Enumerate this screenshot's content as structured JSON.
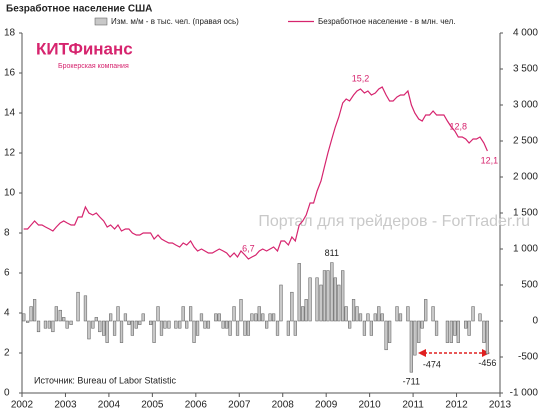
{
  "chart_data": {
    "type": "bar-line",
    "title": "Безработное население США",
    "source": "Источник: Bureau of Labor Statistic",
    "watermark": "Портал для трейдеров - ForTrader.ru",
    "logo": {
      "name": "КИТФинанс",
      "tagline": "Брокерская компания"
    },
    "x": [
      2002.04,
      2002.13,
      2002.21,
      2002.29,
      2002.38,
      2002.46,
      2002.54,
      2002.63,
      2002.71,
      2002.79,
      2002.88,
      2002.96,
      2003.04,
      2003.13,
      2003.21,
      2003.29,
      2003.38,
      2003.46,
      2003.54,
      2003.63,
      2003.71,
      2003.79,
      2003.88,
      2003.96,
      2004.04,
      2004.13,
      2004.21,
      2004.29,
      2004.38,
      2004.46,
      2004.54,
      2004.63,
      2004.71,
      2004.79,
      2004.88,
      2004.96,
      2005.04,
      2005.13,
      2005.21,
      2005.29,
      2005.38,
      2005.46,
      2005.54,
      2005.63,
      2005.71,
      2005.79,
      2005.88,
      2005.96,
      2006.04,
      2006.13,
      2006.21,
      2006.29,
      2006.38,
      2006.46,
      2006.54,
      2006.63,
      2006.71,
      2006.79,
      2006.88,
      2006.96,
      2007.04,
      2007.13,
      2007.21,
      2007.29,
      2007.38,
      2007.46,
      2007.54,
      2007.63,
      2007.71,
      2007.79,
      2007.88,
      2007.96,
      2008.04,
      2008.13,
      2008.21,
      2008.29,
      2008.38,
      2008.46,
      2008.54,
      2008.63,
      2008.71,
      2008.79,
      2008.88,
      2008.96,
      2009.04,
      2009.13,
      2009.21,
      2009.29,
      2009.38,
      2009.46,
      2009.54,
      2009.63,
      2009.71,
      2009.79,
      2009.88,
      2009.96,
      2010.04,
      2010.13,
      2010.21,
      2010.29,
      2010.38,
      2010.46,
      2010.54,
      2010.63,
      2010.71,
      2010.79,
      2010.88,
      2010.96,
      2011.04,
      2011.13,
      2011.21,
      2011.29,
      2011.38,
      2011.46,
      2011.54,
      2011.63,
      2011.71,
      2011.79,
      2011.88,
      2011.96,
      2012.04,
      2012.13,
      2012.21,
      2012.29,
      2012.38,
      2012.46,
      2012.54,
      2012.63,
      2012.71
    ],
    "series": [
      {
        "name": "Изм. м/м - в тыс. чел. (правая ось)",
        "type": "bar",
        "axis": "y2",
        "color": "#c8c8c8",
        "values": [
          100,
          -20,
          200,
          300,
          -150,
          0,
          -100,
          -100,
          -150,
          200,
          150,
          50,
          -100,
          -50,
          0,
          400,
          0,
          350,
          -250,
          -100,
          50,
          -150,
          -200,
          -300,
          100,
          -200,
          200,
          -300,
          100,
          -50,
          -200,
          -100,
          -50,
          100,
          0,
          -50,
          -300,
          200,
          -200,
          -100,
          -100,
          0,
          -100,
          -100,
          200,
          -100,
          200,
          -300,
          -200,
          100,
          -100,
          -100,
          0,
          100,
          100,
          -100,
          -100,
          -200,
          200,
          -200,
          300,
          -200,
          -200,
          100,
          100,
          200,
          100,
          -100,
          100,
          100,
          -200,
          500,
          0,
          -200,
          400,
          -200,
          800,
          200,
          300,
          600,
          0,
          600,
          500,
          700,
          700,
          811,
          600,
          500,
          700,
          200,
          -100,
          300,
          200,
          100,
          -200,
          100,
          -200,
          100,
          200,
          100,
          -400,
          -300,
          0,
          200,
          100,
          0,
          200,
          -711,
          -474,
          -300,
          -100,
          300,
          0,
          200,
          -200,
          0,
          0,
          -300,
          -300,
          -200,
          -300,
          0,
          -100,
          -200,
          200,
          0,
          100,
          -300,
          -456
        ]
      },
      {
        "name": "Безработное население - в млн. чел.",
        "type": "line",
        "axis": "y",
        "color": "#d6246e",
        "values": [
          8.2,
          8.2,
          8.4,
          8.6,
          8.4,
          8.4,
          8.3,
          8.2,
          8.1,
          8.3,
          8.5,
          8.6,
          8.5,
          8.4,
          8.4,
          8.8,
          8.8,
          9.3,
          9.0,
          8.9,
          9.0,
          8.8,
          8.6,
          8.3,
          8.4,
          8.2,
          8.4,
          8.1,
          8.2,
          8.2,
          8.0,
          7.9,
          7.9,
          8.0,
          8.0,
          8.0,
          7.7,
          7.9,
          7.7,
          7.6,
          7.5,
          7.5,
          7.4,
          7.3,
          7.5,
          7.4,
          7.6,
          7.3,
          7.1,
          7.2,
          7.1,
          7.0,
          7.0,
          7.1,
          7.2,
          7.1,
          7.0,
          6.8,
          7.0,
          6.8,
          7.1,
          6.9,
          6.7,
          6.8,
          6.9,
          7.1,
          7.2,
          7.1,
          7.2,
          7.3,
          7.1,
          7.6,
          7.6,
          7.4,
          7.8,
          7.6,
          8.4,
          8.6,
          8.9,
          9.5,
          9.5,
          10.1,
          10.6,
          11.3,
          12.0,
          12.7,
          13.3,
          13.8,
          14.5,
          14.7,
          14.6,
          14.9,
          15.1,
          15.2,
          15.0,
          15.1,
          14.9,
          15.0,
          15.2,
          15.3,
          14.9,
          14.6,
          14.6,
          14.8,
          14.9,
          14.9,
          15.1,
          14.4,
          14.0,
          13.7,
          13.6,
          13.9,
          13.9,
          14.1,
          13.9,
          13.9,
          13.9,
          13.6,
          13.3,
          13.1,
          12.8,
          12.8,
          12.7,
          12.5,
          12.7,
          12.7,
          12.8,
          12.5,
          12.1
        ]
      }
    ],
    "bar_labels": [
      {
        "x": 2009.13,
        "value": 811
      },
      {
        "x": 2010.96,
        "value": -711
      },
      {
        "x": 2011.04,
        "value": -474
      },
      {
        "x": 2012.71,
        "value": -456
      }
    ],
    "line_labels": [
      {
        "x": 2007.21,
        "value": 6.7,
        "label": "6,7"
      },
      {
        "x": 2009.79,
        "value": 15.2,
        "label": "15,2"
      },
      {
        "x": 2012.04,
        "value": 12.8,
        "label": "12,8"
      },
      {
        "x": 2012.71,
        "value": 12.1,
        "label": "12,1"
      }
    ],
    "xlim": [
      2002,
      2013
    ],
    "xticks": [
      2002,
      2003,
      2004,
      2005,
      2006,
      2007,
      2008,
      2009,
      2010,
      2011,
      2012,
      2013
    ],
    "ylim": [
      0,
      18
    ],
    "yticks": [
      0,
      2,
      4,
      6,
      8,
      10,
      12,
      14,
      16,
      18
    ],
    "y2lim": [
      -1000,
      4000
    ],
    "y2ticks": [
      {
        "value": -1000,
        "label": "-1 000"
      },
      {
        "value": -500,
        "label": "-500"
      },
      0,
      500,
      {
        "value": 1000,
        "label": "1 000"
      },
      {
        "value": 1500,
        "label": "1 500"
      },
      {
        "value": 2000,
        "label": "2 000"
      },
      {
        "value": 2500,
        "label": "2 500"
      },
      {
        "value": 3000,
        "label": "3 000"
      },
      {
        "value": 3500,
        "label": "3 500"
      },
      {
        "value": 4000,
        "label": "4 000"
      }
    ]
  }
}
